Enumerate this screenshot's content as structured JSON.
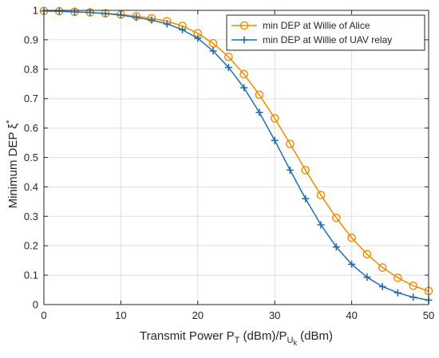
{
  "chart_data": {
    "type": "line",
    "xlabel": {
      "text": "Transmit Power P",
      "sub1": "T",
      "mid": " (dBm)/P",
      "sub2": "U",
      "subsub": "k",
      "tail": " (dBm)"
    },
    "ylabel": {
      "text": "Minimum DEP ξ",
      "sup": "*"
    },
    "xlim": [
      0,
      50
    ],
    "ylim": [
      0,
      1
    ],
    "xticks": [
      "0",
      "10",
      "20",
      "30",
      "40",
      "50"
    ],
    "yticks": [
      "0",
      "0.1",
      "0.2",
      "0.3",
      "0.4",
      "0.5",
      "0.6",
      "0.7",
      "0.8",
      "0.9",
      "1"
    ],
    "grid": true,
    "legend_position": "top-right",
    "x": [
      0,
      2,
      4,
      6,
      8,
      10,
      12,
      14,
      16,
      18,
      20,
      22,
      24,
      26,
      28,
      30,
      32,
      34,
      36,
      38,
      40,
      42,
      44,
      46,
      48,
      50
    ],
    "series": [
      {
        "name": "min DEP at Willie of Alice",
        "color": "#ee8a00",
        "marker": "circle",
        "values": [
          0.998,
          0.997,
          0.995,
          0.993,
          0.99,
          0.986,
          0.98,
          0.973,
          0.963,
          0.947,
          0.922,
          0.888,
          0.842,
          0.783,
          0.713,
          0.633,
          0.546,
          0.457,
          0.372,
          0.295,
          0.227,
          0.171,
          0.126,
          0.091,
          0.064,
          0.046
        ]
      },
      {
        "name": "min DEP at Willie of UAV relay",
        "color": "#1f6fb0",
        "marker": "plus",
        "values": [
          0.998,
          0.997,
          0.995,
          0.993,
          0.989,
          0.984,
          0.976,
          0.967,
          0.954,
          0.934,
          0.905,
          0.862,
          0.806,
          0.737,
          0.653,
          0.558,
          0.457,
          0.36,
          0.271,
          0.196,
          0.137,
          0.093,
          0.061,
          0.04,
          0.025,
          0.015
        ]
      }
    ]
  }
}
